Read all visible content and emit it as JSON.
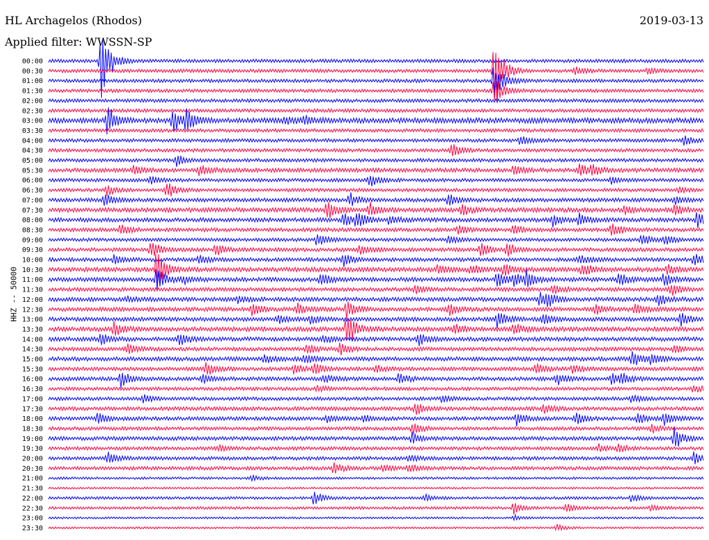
{
  "header": {
    "station": "HL Archagelos (Rhodos)",
    "date": "2019-03-13",
    "filter": "Applied filter: WWSSN-SP"
  },
  "colors": {
    "trace_a": "#0000ff",
    "trace_b": "#ff0040",
    "text": "#000000"
  },
  "chart_data": {
    "type": "line",
    "ylabel": "HHZ -- 50000",
    "xlabel": "",
    "title": "",
    "rows": [
      {
        "label": "00:00",
        "amplitude": 1.0,
        "events": [
          {
            "x": 0.08,
            "a": 60
          }
        ]
      },
      {
        "label": "00:30",
        "amplitude": 1.0,
        "events": [
          {
            "x": 0.68,
            "a": 55
          },
          {
            "x": 0.805,
            "a": 5
          },
          {
            "x": 0.915,
            "a": 4
          }
        ]
      },
      {
        "label": "01:00",
        "amplitude": 1.0,
        "events": [
          {
            "x": 0.68,
            "a": 30
          }
        ]
      },
      {
        "label": "01:30",
        "amplitude": 1.0,
        "events": [
          {
            "x": 0.68,
            "a": 25
          }
        ]
      },
      {
        "label": "02:00",
        "amplitude": 1.0,
        "events": []
      },
      {
        "label": "02:30",
        "amplitude": 1.0,
        "events": []
      },
      {
        "label": "03:00",
        "amplitude": 1.5,
        "events": [
          {
            "x": 0.09,
            "a": 22
          },
          {
            "x": 0.19,
            "a": 18
          },
          {
            "x": 0.21,
            "a": 14
          },
          {
            "x": 0.36,
            "a": 5
          },
          {
            "x": 0.39,
            "a": 6
          }
        ]
      },
      {
        "label": "03:30",
        "amplitude": 1.0,
        "events": []
      },
      {
        "label": "04:00",
        "amplitude": 1.0,
        "events": [
          {
            "x": 0.72,
            "a": 8
          },
          {
            "x": 0.97,
            "a": 7
          }
        ]
      },
      {
        "label": "04:30",
        "amplitude": 1.0,
        "events": [
          {
            "x": 0.615,
            "a": 10
          }
        ]
      },
      {
        "label": "05:00",
        "amplitude": 1.0,
        "events": [
          {
            "x": 0.195,
            "a": 8
          }
        ]
      },
      {
        "label": "05:30",
        "amplitude": 1.2,
        "events": [
          {
            "x": 0.13,
            "a": 6
          },
          {
            "x": 0.23,
            "a": 8
          },
          {
            "x": 0.71,
            "a": 7
          },
          {
            "x": 0.81,
            "a": 9
          },
          {
            "x": 0.83,
            "a": 8
          }
        ]
      },
      {
        "label": "06:00",
        "amplitude": 1.0,
        "events": [
          {
            "x": 0.155,
            "a": 6
          },
          {
            "x": 0.49,
            "a": 10
          },
          {
            "x": 0.86,
            "a": 5
          }
        ]
      },
      {
        "label": "06:30",
        "amplitude": 1.0,
        "events": [
          {
            "x": 0.09,
            "a": 9
          },
          {
            "x": 0.18,
            "a": 14
          },
          {
            "x": 0.96,
            "a": 4
          }
        ]
      },
      {
        "label": "07:00",
        "amplitude": 1.1,
        "events": [
          {
            "x": 0.085,
            "a": 10
          },
          {
            "x": 0.46,
            "a": 10
          },
          {
            "x": 0.61,
            "a": 8
          },
          {
            "x": 0.955,
            "a": 6
          }
        ]
      },
      {
        "label": "07:30",
        "amplitude": 1.3,
        "events": [
          {
            "x": 0.425,
            "a": 14
          },
          {
            "x": 0.49,
            "a": 10
          },
          {
            "x": 0.63,
            "a": 8
          },
          {
            "x": 0.88,
            "a": 6
          },
          {
            "x": 0.955,
            "a": 7
          }
        ]
      },
      {
        "label": "08:00",
        "amplitude": 1.2,
        "events": [
          {
            "x": 0.45,
            "a": 10
          },
          {
            "x": 0.47,
            "a": 12
          },
          {
            "x": 0.52,
            "a": 6
          },
          {
            "x": 0.77,
            "a": 9
          },
          {
            "x": 0.81,
            "a": 8
          },
          {
            "x": 0.99,
            "a": 12
          }
        ]
      },
      {
        "label": "08:30",
        "amplitude": 1.1,
        "events": [
          {
            "x": 0.11,
            "a": 8
          },
          {
            "x": 0.625,
            "a": 6
          },
          {
            "x": 0.71,
            "a": 7
          },
          {
            "x": 0.86,
            "a": 10
          }
        ]
      },
      {
        "label": "09:00",
        "amplitude": 1.0,
        "events": [
          {
            "x": 0.41,
            "a": 10
          },
          {
            "x": 0.61,
            "a": 7
          },
          {
            "x": 0.905,
            "a": 10
          },
          {
            "x": 0.94,
            "a": 8
          }
        ]
      },
      {
        "label": "09:30",
        "amplitude": 1.1,
        "events": [
          {
            "x": 0.155,
            "a": 14
          },
          {
            "x": 0.255,
            "a": 9
          },
          {
            "x": 0.475,
            "a": 8
          },
          {
            "x": 0.66,
            "a": 10
          },
          {
            "x": 0.7,
            "a": 10
          }
        ]
      },
      {
        "label": "10:00",
        "amplitude": 1.1,
        "events": [
          {
            "x": 0.1,
            "a": 6
          },
          {
            "x": 0.23,
            "a": 7
          },
          {
            "x": 0.45,
            "a": 10
          },
          {
            "x": 0.81,
            "a": 8
          },
          {
            "x": 0.985,
            "a": 10
          }
        ]
      },
      {
        "label": "10:30",
        "amplitude": 1.3,
        "events": [
          {
            "x": 0.165,
            "a": 30
          },
          {
            "x": 0.595,
            "a": 8
          },
          {
            "x": 0.645,
            "a": 7
          },
          {
            "x": 0.695,
            "a": 8
          },
          {
            "x": 0.815,
            "a": 10
          },
          {
            "x": 0.945,
            "a": 7
          }
        ]
      },
      {
        "label": "11:00",
        "amplitude": 1.2,
        "events": [
          {
            "x": 0.165,
            "a": 18
          },
          {
            "x": 0.205,
            "a": 6
          },
          {
            "x": 0.415,
            "a": 9
          },
          {
            "x": 0.685,
            "a": 12
          },
          {
            "x": 0.71,
            "a": 10
          },
          {
            "x": 0.73,
            "a": 12
          },
          {
            "x": 0.87,
            "a": 10
          },
          {
            "x": 0.94,
            "a": 10
          }
        ]
      },
      {
        "label": "11:30",
        "amplitude": 1.1,
        "events": [
          {
            "x": 0.56,
            "a": 6
          },
          {
            "x": 0.77,
            "a": 8
          },
          {
            "x": 0.95,
            "a": 10
          }
        ]
      },
      {
        "label": "12:00",
        "amplitude": 1.2,
        "events": [
          {
            "x": 0.12,
            "a": 5
          },
          {
            "x": 0.29,
            "a": 5
          },
          {
            "x": 0.75,
            "a": 10
          },
          {
            "x": 0.76,
            "a": 9
          },
          {
            "x": 0.93,
            "a": 10
          }
        ]
      },
      {
        "label": "12:30",
        "amplitude": 1.2,
        "events": [
          {
            "x": 0.31,
            "a": 8
          },
          {
            "x": 0.38,
            "a": 8
          },
          {
            "x": 0.455,
            "a": 14
          },
          {
            "x": 0.61,
            "a": 9
          },
          {
            "x": 0.835,
            "a": 8
          },
          {
            "x": 0.895,
            "a": 8
          }
        ]
      },
      {
        "label": "13:00",
        "amplitude": 1.2,
        "events": [
          {
            "x": 0.35,
            "a": 6
          },
          {
            "x": 0.4,
            "a": 6
          },
          {
            "x": 0.685,
            "a": 12
          },
          {
            "x": 0.755,
            "a": 9
          },
          {
            "x": 0.965,
            "a": 10
          }
        ]
      },
      {
        "label": "13:30",
        "amplitude": 1.3,
        "events": [
          {
            "x": 0.1,
            "a": 10
          },
          {
            "x": 0.455,
            "a": 28
          },
          {
            "x": 0.62,
            "a": 8
          },
          {
            "x": 0.71,
            "a": 8
          }
        ]
      },
      {
        "label": "14:00",
        "amplitude": 1.2,
        "events": [
          {
            "x": 0.08,
            "a": 8
          },
          {
            "x": 0.2,
            "a": 10
          },
          {
            "x": 0.42,
            "a": 6
          },
          {
            "x": 0.565,
            "a": 9
          }
        ]
      },
      {
        "label": "14:30",
        "amplitude": 1.1,
        "events": [
          {
            "x": 0.12,
            "a": 8
          },
          {
            "x": 0.395,
            "a": 7
          },
          {
            "x": 0.445,
            "a": 9
          },
          {
            "x": 0.955,
            "a": 5
          }
        ]
      },
      {
        "label": "15:00",
        "amplitude": 1.2,
        "events": [
          {
            "x": 0.33,
            "a": 6
          },
          {
            "x": 0.39,
            "a": 8
          },
          {
            "x": 0.89,
            "a": 12
          },
          {
            "x": 0.92,
            "a": 9
          }
        ]
      },
      {
        "label": "15:30",
        "amplitude": 1.1,
        "events": [
          {
            "x": 0.24,
            "a": 10
          },
          {
            "x": 0.375,
            "a": 7
          },
          {
            "x": 0.405,
            "a": 9
          },
          {
            "x": 0.5,
            "a": 6
          },
          {
            "x": 0.745,
            "a": 8
          },
          {
            "x": 0.8,
            "a": 6
          }
        ]
      },
      {
        "label": "16:00",
        "amplitude": 1.1,
        "events": [
          {
            "x": 0.11,
            "a": 12
          },
          {
            "x": 0.235,
            "a": 6
          },
          {
            "x": 0.42,
            "a": 6
          },
          {
            "x": 0.535,
            "a": 8
          },
          {
            "x": 0.775,
            "a": 9
          },
          {
            "x": 0.86,
            "a": 8
          },
          {
            "x": 0.875,
            "a": 6
          }
        ]
      },
      {
        "label": "16:30",
        "amplitude": 1.0,
        "events": [
          {
            "x": 0.41,
            "a": 5
          },
          {
            "x": 0.985,
            "a": 6
          }
        ]
      },
      {
        "label": "17:00",
        "amplitude": 1.0,
        "events": [
          {
            "x": 0.145,
            "a": 6
          },
          {
            "x": 0.6,
            "a": 5
          },
          {
            "x": 0.89,
            "a": 6
          }
        ]
      },
      {
        "label": "17:30",
        "amplitude": 1.1,
        "events": [
          {
            "x": 0.56,
            "a": 9
          },
          {
            "x": 0.755,
            "a": 7
          }
        ]
      },
      {
        "label": "18:00",
        "amplitude": 1.1,
        "events": [
          {
            "x": 0.075,
            "a": 8
          },
          {
            "x": 0.425,
            "a": 6
          },
          {
            "x": 0.48,
            "a": 5
          },
          {
            "x": 0.715,
            "a": 10
          },
          {
            "x": 0.805,
            "a": 9
          },
          {
            "x": 0.9,
            "a": 8
          },
          {
            "x": 0.94,
            "a": 10
          }
        ]
      },
      {
        "label": "18:30",
        "amplitude": 1.0,
        "events": [
          {
            "x": 0.555,
            "a": 10
          },
          {
            "x": 0.92,
            "a": 6
          }
        ]
      },
      {
        "label": "19:00",
        "amplitude": 1.1,
        "events": [
          {
            "x": 0.555,
            "a": 8
          },
          {
            "x": 0.955,
            "a": 18
          }
        ]
      },
      {
        "label": "19:30",
        "amplitude": 1.0,
        "events": [
          {
            "x": 0.26,
            "a": 5
          },
          {
            "x": 0.84,
            "a": 5
          },
          {
            "x": 0.87,
            "a": 5
          }
        ]
      },
      {
        "label": "20:00",
        "amplitude": 1.0,
        "events": [
          {
            "x": 0.09,
            "a": 10
          },
          {
            "x": 0.55,
            "a": 6
          },
          {
            "x": 0.985,
            "a": 8
          }
        ]
      },
      {
        "label": "20:30",
        "amplitude": 1.0,
        "events": [
          {
            "x": 0.435,
            "a": 9
          },
          {
            "x": 0.51,
            "a": 5
          },
          {
            "x": 0.55,
            "a": 6
          }
        ]
      },
      {
        "label": "21:00",
        "amplitude": 0.7,
        "events": [
          {
            "x": 0.31,
            "a": 4
          }
        ]
      },
      {
        "label": "21:30",
        "amplitude": 0.6,
        "events": []
      },
      {
        "label": "22:00",
        "amplitude": 0.8,
        "events": [
          {
            "x": 0.405,
            "a": 10
          },
          {
            "x": 0.575,
            "a": 5
          },
          {
            "x": 0.89,
            "a": 6
          }
        ]
      },
      {
        "label": "22:30",
        "amplitude": 0.8,
        "events": [
          {
            "x": 0.71,
            "a": 8
          },
          {
            "x": 0.79,
            "a": 6
          },
          {
            "x": 0.92,
            "a": 5
          }
        ]
      },
      {
        "label": "23:00",
        "amplitude": 0.6,
        "events": [
          {
            "x": 0.71,
            "a": 4
          }
        ]
      },
      {
        "label": "23:30",
        "amplitude": 0.6,
        "events": [
          {
            "x": 0.775,
            "a": 5
          }
        ]
      }
    ]
  }
}
